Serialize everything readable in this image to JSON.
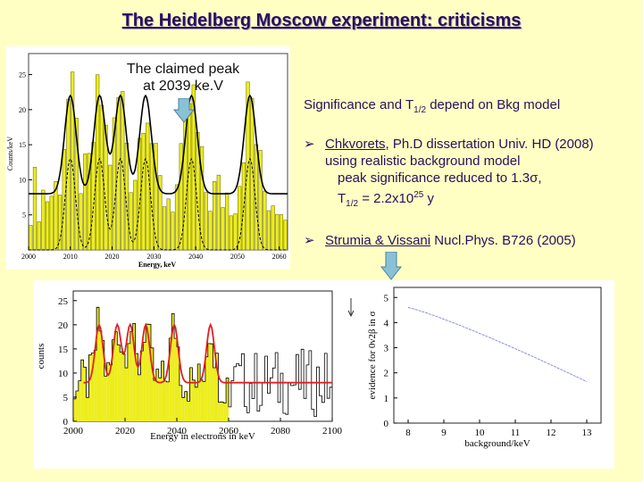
{
  "title": "The Heidelberg Moscow experiment: criticisms",
  "annotation": {
    "line1": "The claimed peak",
    "line2": "at 2039 ke.V"
  },
  "significance": {
    "text": "Significance and T",
    "sub": "1/2",
    "rest": " depend on Bkg model"
  },
  "bullet1": {
    "author": "Chkvorets",
    "rest": ", Ph.D dissertation Univ. HD (2008)",
    "line2": "using realistic background model",
    "line3": "peak significance reduced to 1.3σ,",
    "t": "T",
    "t_sub": "1/2",
    "t_val": " = 2.2x10",
    "t_exp": "25",
    "t_unit": " y"
  },
  "bullet2": {
    "authors": "Strumia & Vissani",
    "rest": " Nucl.Phys. B726 (2005)"
  },
  "chart_top": {
    "ylabel": "Counts/keV",
    "xlabel": "Energy, keV",
    "yticks": [
      "5",
      "10",
      "15",
      "20",
      "25"
    ],
    "xticks": [
      "2000",
      "2010",
      "2020",
      "2030",
      "2040",
      "2050",
      "2060"
    ]
  },
  "chart_left": {
    "ylabel": "counts",
    "xlabel": "Energy in electrons in keV",
    "yticks": [
      "0",
      "5",
      "10",
      "15",
      "20",
      "25"
    ],
    "xticks": [
      "2000",
      "2020",
      "2040",
      "2060",
      "2080",
      "2100"
    ]
  },
  "chart_right": {
    "ylabel": "evidence for 0ν2β in σ",
    "xlabel": "background/keV",
    "yticks": [
      "0",
      "1",
      "2",
      "3",
      "4",
      "5"
    ],
    "xticks": [
      "8",
      "9",
      "10",
      "11",
      "12",
      "13"
    ],
    "colors": {
      "line": "#8a8fd8"
    }
  },
  "colors": {
    "bars": "#eded1e",
    "title": "#2a0f5c",
    "arrow": "#89c2d6",
    "fit": "#e02020"
  }
}
